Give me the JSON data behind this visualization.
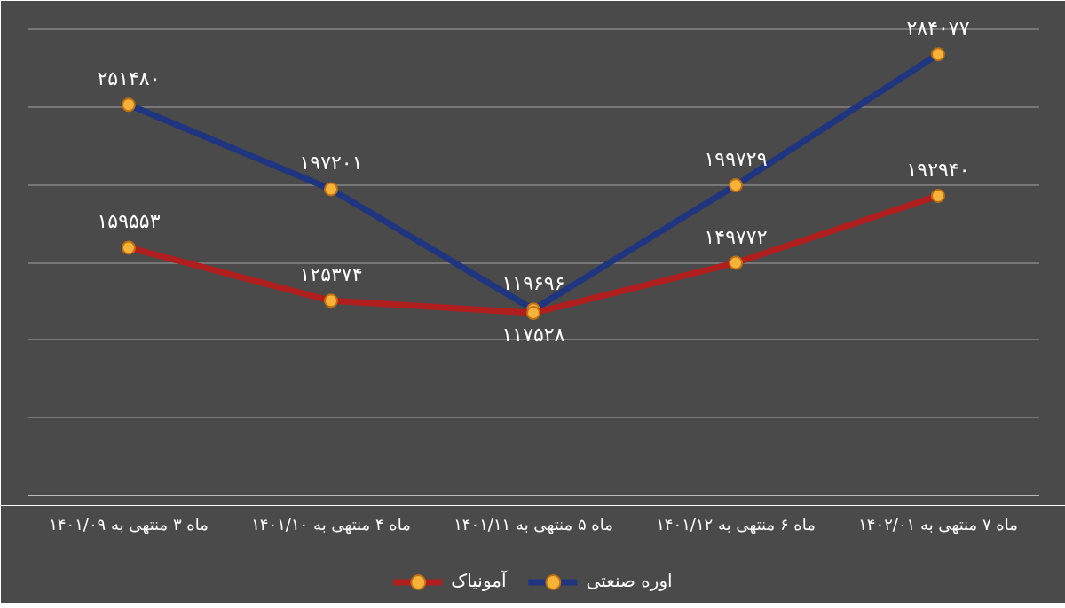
{
  "chart_data": {
    "type": "line",
    "categories": [
      "ماه ۳ منتهی به ۱۴۰۱/۰۹",
      "ماه ۴ منتهی به ۱۴۰۱/۱۰",
      "ماه ۵ منتهی به ۱۴۰۱/۱۱",
      "ماه ۶ منتهی به ۱۴۰۱/۱۲",
      "ماه ۷ منتهی به ۱۴۰۲/۰۱"
    ],
    "series": [
      {
        "name": "اوره صنعتی",
        "color": "#1f3580",
        "values": [
          251480,
          197201,
          119696,
          199729,
          284077
        ],
        "value_labels": [
          "۲۵۱۴۸۰",
          "۱۹۷۲۰۱",
          "۱۱۹۶۹۶",
          "۱۹۹۷۲۹",
          "۲۸۴۰۷۷"
        ]
      },
      {
        "name": "آمونیاک",
        "color": "#b01e1e",
        "values": [
          159553,
          125374,
          117528,
          149772,
          192940
        ],
        "value_labels": [
          "۱۵۹۵۵۳",
          "۱۲۵۳۷۴",
          "۱۱۷۵۲۸",
          "۱۴۹۷۷۲",
          "۱۹۲۹۴۰"
        ]
      }
    ],
    "ylim": [
      0,
      315000
    ],
    "yticks": [
      {
        "value": 0,
        "label": null
      },
      {
        "value": 50000,
        "label": null
      },
      {
        "value": 100000,
        "label": null
      },
      {
        "value": 150000,
        "label": null
      },
      {
        "value": 200000,
        "label": null
      },
      {
        "value": 250000,
        "label": null
      },
      {
        "value": 300000,
        "label": null
      }
    ],
    "tick_labels": "x",
    "grid": "y",
    "legend": "bottom",
    "marker": "circle",
    "line_style": "solid"
  }
}
